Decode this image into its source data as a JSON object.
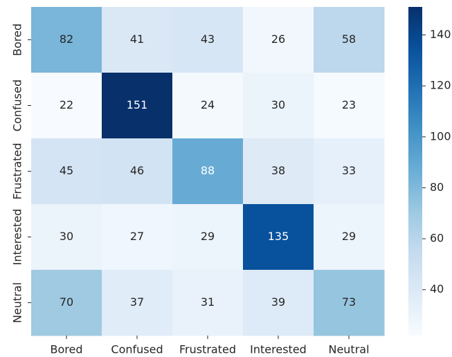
{
  "chart_data": {
    "type": "heatmap",
    "categories": [
      "Bored",
      "Confused",
      "Frustrated",
      "Interested",
      "Neutral"
    ],
    "values": [
      [
        82,
        41,
        43,
        26,
        58
      ],
      [
        22,
        151,
        24,
        30,
        23
      ],
      [
        45,
        46,
        88,
        38,
        33
      ],
      [
        30,
        27,
        29,
        135,
        29
      ],
      [
        70,
        37,
        31,
        39,
        73
      ]
    ],
    "colormap": "Blues",
    "clim": [
      22,
      151
    ],
    "cticks": [
      40,
      60,
      80,
      100,
      120,
      140
    ]
  }
}
